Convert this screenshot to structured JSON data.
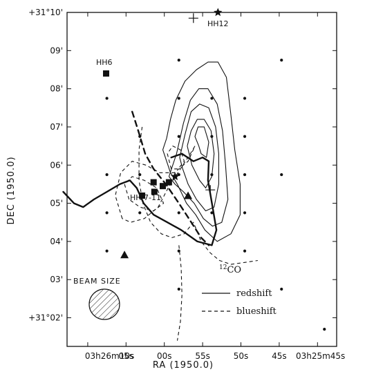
{
  "chart_data": {
    "type": "contour",
    "xlabel": "RA (1950.0)",
    "ylabel": "DEC (1950.0)",
    "x_ticks": [
      {
        "ra_s": 10,
        "label": "03h26m10s"
      },
      {
        "ra_s": 5,
        "label": "05s"
      },
      {
        "ra_s": 0,
        "label": "00s"
      },
      {
        "ra_s": -5,
        "label": "55s"
      },
      {
        "ra_s": -10,
        "label": "50s"
      },
      {
        "ra_s": -15,
        "label": "45s"
      },
      {
        "ra_s": -20,
        "label": "03h25m45s"
      }
    ],
    "y_ticks": [
      {
        "dec_min": 10,
        "label": "+31°10'"
      },
      {
        "dec_min": 9,
        "label": "09'"
      },
      {
        "dec_min": 8,
        "label": "08'"
      },
      {
        "dec_min": 7,
        "label": "07'"
      },
      {
        "dec_min": 6,
        "label": "06'"
      },
      {
        "dec_min": 5,
        "label": "05'"
      },
      {
        "dec_min": 4,
        "label": "04'"
      },
      {
        "dec_min": 3,
        "label": "03'"
      },
      {
        "dec_min": 2,
        "label": "+31°02'"
      }
    ],
    "xlim": [
      12.7,
      -22.5
    ],
    "ylim": [
      1.25,
      10.0
    ],
    "species_label": "12CO",
    "legend": [
      {
        "name": "redshift",
        "style": "solid"
      },
      {
        "name": "blueshift",
        "style": "dashed"
      }
    ],
    "beam_label": "BEAM SIZE",
    "objects": [
      {
        "label": "HH6",
        "marker": "square",
        "x": 7.6,
        "y": 8.4
      },
      {
        "label": "HH12",
        "marker": "star",
        "x": -7.0,
        "y": 10.0
      },
      {
        "label": "HH 7-11",
        "marker": "square-group",
        "x": 2.0,
        "y": 5.4
      }
    ],
    "sources": [
      {
        "marker": "square",
        "x": 1.4,
        "y": 5.55
      },
      {
        "marker": "square",
        "x": 1.3,
        "y": 5.3
      },
      {
        "marker": "square",
        "x": 0.2,
        "y": 5.45
      },
      {
        "marker": "square",
        "x": -0.6,
        "y": 5.55
      },
      {
        "marker": "square",
        "x": 2.9,
        "y": 5.2
      },
      {
        "marker": "star",
        "x": -1.4,
        "y": 5.7
      },
      {
        "marker": "triangle",
        "x": -3.1,
        "y": 5.2
      },
      {
        "marker": "triangle",
        "x": 5.2,
        "y": 3.65
      },
      {
        "marker": "cross",
        "x": -3.8,
        "y": 9.85
      },
      {
        "marker": "cross",
        "x": -6.0,
        "y": 5.35
      }
    ],
    "grid_points": [
      [
        -1.9,
        8.75
      ],
      [
        -15.3,
        8.75
      ],
      [
        7.5,
        7.75
      ],
      [
        -1.9,
        7.75
      ],
      [
        -6.2,
        7.75
      ],
      [
        -10.5,
        7.75
      ],
      [
        3.2,
        6.75
      ],
      [
        -1.9,
        6.75
      ],
      [
        -6.2,
        6.75
      ],
      [
        -10.5,
        6.75
      ],
      [
        7.5,
        5.75
      ],
      [
        3.2,
        5.75
      ],
      [
        -1.9,
        5.75
      ],
      [
        -6.2,
        5.75
      ],
      [
        -10.5,
        5.75
      ],
      [
        -15.3,
        5.75
      ],
      [
        7.5,
        4.75
      ],
      [
        3.2,
        4.75
      ],
      [
        -1.9,
        4.75
      ],
      [
        -6.2,
        4.75
      ],
      [
        -10.5,
        4.75
      ],
      [
        7.5,
        3.75
      ],
      [
        -1.9,
        3.75
      ],
      [
        -10.5,
        3.75
      ],
      [
        -1.9,
        2.75
      ],
      [
        -15.3,
        2.75
      ],
      [
        -20.9,
        1.7
      ]
    ],
    "redshift_contours": [
      [
        [
          0.2,
          6.4
        ],
        [
          -0.3,
          6.7
        ],
        [
          -0.8,
          7.2
        ],
        [
          -1.5,
          7.7
        ],
        [
          -2.7,
          8.2
        ],
        [
          -4.2,
          8.5
        ],
        [
          -5.7,
          8.7
        ],
        [
          -7.0,
          8.7
        ],
        [
          -8.1,
          8.3
        ],
        [
          -8.7,
          7.3
        ],
        [
          -9.2,
          6.4
        ],
        [
          -9.9,
          5.5
        ],
        [
          -9.9,
          4.7
        ],
        [
          -8.7,
          4.2
        ],
        [
          -6.9,
          4.0
        ],
        [
          -5.3,
          4.3
        ],
        [
          -4.1,
          4.7
        ],
        [
          -2.9,
          5.0
        ],
        [
          -1.7,
          5.5
        ],
        [
          -0.8,
          5.8
        ],
        [
          0.2,
          6.4
        ]
      ],
      [
        [
          -0.6,
          5.7
        ],
        [
          -1.6,
          6.3
        ],
        [
          -2.5,
          7.1
        ],
        [
          -3.4,
          7.7
        ],
        [
          -4.5,
          8.0
        ],
        [
          -5.7,
          8.0
        ],
        [
          -6.9,
          7.6
        ],
        [
          -7.6,
          6.9
        ],
        [
          -8.0,
          6.0
        ],
        [
          -8.3,
          5.1
        ],
        [
          -7.5,
          4.5
        ],
        [
          -6.3,
          4.4
        ],
        [
          -5.1,
          4.6
        ],
        [
          -3.9,
          5.0
        ],
        [
          -2.5,
          5.3
        ],
        [
          -1.4,
          5.5
        ],
        [
          -0.6,
          5.7
        ]
      ],
      [
        [
          -2.0,
          6.2
        ],
        [
          -2.7,
          6.8
        ],
        [
          -3.5,
          7.4
        ],
        [
          -4.6,
          7.6
        ],
        [
          -5.8,
          7.5
        ],
        [
          -6.7,
          7.0
        ],
        [
          -7.1,
          6.3
        ],
        [
          -7.1,
          5.5
        ],
        [
          -6.5,
          4.9
        ],
        [
          -5.4,
          4.8
        ],
        [
          -4.2,
          5.1
        ],
        [
          -3.1,
          5.5
        ],
        [
          -2.4,
          5.9
        ],
        [
          -2.0,
          6.2
        ]
      ],
      [
        [
          -3.0,
          6.5
        ],
        [
          -3.5,
          6.9
        ],
        [
          -4.3,
          7.2
        ],
        [
          -5.2,
          7.2
        ],
        [
          -6.1,
          6.9
        ],
        [
          -6.5,
          6.3
        ],
        [
          -6.2,
          5.7
        ],
        [
          -5.4,
          5.4
        ],
        [
          -4.6,
          5.6
        ],
        [
          -3.6,
          6.0
        ],
        [
          -3.0,
          6.5
        ]
      ],
      [
        [
          -4.5,
          6.5
        ],
        [
          -4.0,
          6.75
        ],
        [
          -4.4,
          7.0
        ],
        [
          -5.2,
          7.0
        ],
        [
          -5.8,
          6.6
        ],
        [
          -5.5,
          6.2
        ],
        [
          -4.8,
          6.3
        ],
        [
          -4.5,
          6.5
        ]
      ]
    ],
    "blueshift_contours": [
      [
        [
          2.9,
          7.0
        ],
        [
          3.3,
          6.4
        ],
        [
          3.3,
          5.6
        ],
        [
          2.8,
          5.0
        ],
        [
          1.8,
          4.5
        ],
        [
          0.4,
          4.2
        ],
        [
          -1.0,
          4.1
        ],
        [
          -2.6,
          4.2
        ],
        [
          -3.8,
          4.5
        ],
        [
          -4.8,
          4.0
        ],
        [
          -6.0,
          3.7
        ],
        [
          -7.2,
          3.5
        ],
        [
          -8.7,
          3.4
        ],
        [
          -10.5,
          3.45
        ],
        [
          -12.2,
          3.5
        ]
      ],
      [
        [
          5.5,
          4.6
        ],
        [
          6.4,
          5.2
        ],
        [
          5.7,
          5.8
        ],
        [
          4.2,
          6.1
        ],
        [
          2.4,
          6.0
        ],
        [
          0.6,
          5.8
        ],
        [
          -1.3,
          5.8
        ],
        [
          -3.1,
          6.1
        ],
        [
          -4.0,
          6.5
        ],
        [
          -3.4,
          6.3
        ],
        [
          -2.1,
          5.9
        ],
        [
          -0.5,
          5.4
        ],
        [
          0.8,
          4.9
        ],
        [
          2.6,
          4.6
        ],
        [
          4.4,
          4.5
        ],
        [
          5.5,
          4.6
        ]
      ],
      [
        [
          4.6,
          5.1
        ],
        [
          5.2,
          5.5
        ],
        [
          4.2,
          5.7
        ],
        [
          2.6,
          5.6
        ],
        [
          1.0,
          5.4
        ],
        [
          0.1,
          5.0
        ],
        [
          1.4,
          4.8
        ],
        [
          3.2,
          4.9
        ],
        [
          4.6,
          5.1
        ]
      ],
      [
        [
          -0.9,
          5.9
        ],
        [
          -0.4,
          6.3
        ],
        [
          -1.1,
          6.5
        ],
        [
          -2.1,
          6.4
        ],
        [
          -2.6,
          6.1
        ],
        [
          -1.8,
          5.9
        ],
        [
          -0.9,
          5.9
        ]
      ],
      [
        [
          -1.9,
          3.9
        ],
        [
          -2.2,
          3.3
        ],
        [
          -2.3,
          2.6
        ],
        [
          -2.1,
          1.9
        ],
        [
          -1.7,
          1.4
        ]
      ]
    ],
    "heavy_contours": [
      {
        "style": "solid",
        "points": [
          [
            13.2,
            5.3
          ],
          [
            11.8,
            5.0
          ],
          [
            10.6,
            4.9
          ],
          [
            9.2,
            5.1
          ],
          [
            7.5,
            5.3
          ],
          [
            5.8,
            5.5
          ],
          [
            4.5,
            5.6
          ],
          [
            3.6,
            5.4
          ],
          [
            2.7,
            5.0
          ],
          [
            1.4,
            4.7
          ],
          [
            -0.4,
            4.5
          ],
          [
            -2.2,
            4.3
          ],
          [
            -4.3,
            4.0
          ],
          [
            -6.2,
            3.9
          ],
          [
            -6.8,
            4.3
          ],
          [
            -6.3,
            4.9
          ],
          [
            -5.7,
            5.6
          ],
          [
            -5.8,
            6.1
          ],
          [
            -5.0,
            6.2
          ],
          [
            -3.8,
            6.1
          ],
          [
            -2.3,
            6.3
          ],
          [
            -0.9,
            6.2
          ]
        ]
      },
      {
        "style": "dashed",
        "points": [
          [
            4.2,
            7.4
          ],
          [
            3.4,
            6.9
          ],
          [
            2.5,
            6.3
          ],
          [
            1.4,
            5.9
          ],
          [
            -0.2,
            5.5
          ],
          [
            -1.9,
            5.0
          ],
          [
            -3.2,
            4.6
          ],
          [
            -4.8,
            4.1
          ],
          [
            -5.8,
            3.9
          ]
        ]
      }
    ]
  }
}
